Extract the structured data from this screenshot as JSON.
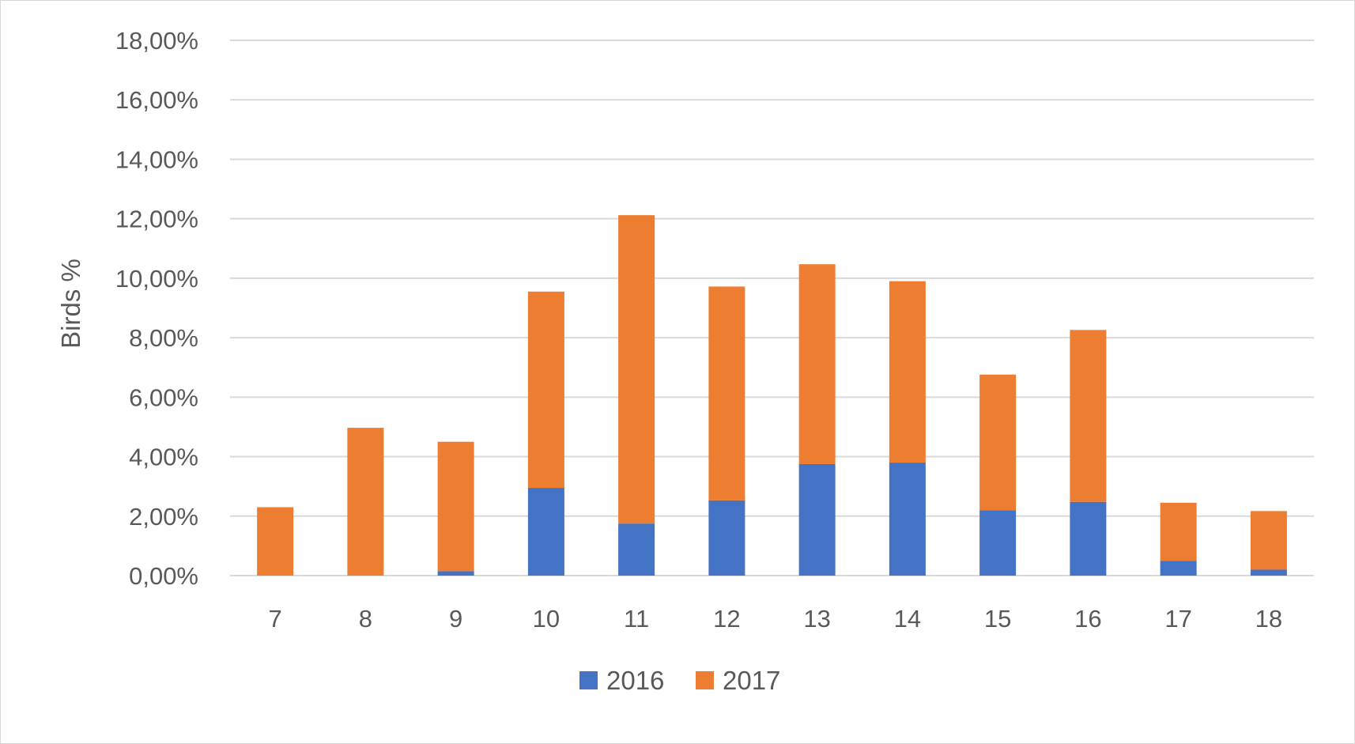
{
  "chart_data": {
    "type": "bar",
    "stacked": true,
    "categories": [
      "7",
      "8",
      "9",
      "10",
      "11",
      "12",
      "13",
      "14",
      "15",
      "16",
      "17",
      "18"
    ],
    "series": [
      {
        "name": "2016",
        "color": "#4472c4",
        "values": [
          0.0,
          0.0,
          0.15,
          2.95,
          1.75,
          2.53,
          3.75,
          3.8,
          2.2,
          2.48,
          0.5,
          0.2
        ]
      },
      {
        "name": "2017",
        "color": "#ed7d31",
        "values": [
          2.3,
          4.97,
          4.35,
          6.6,
          10.37,
          7.19,
          6.72,
          6.1,
          4.56,
          5.78,
          1.95,
          1.97
        ]
      }
    ],
    "title": "",
    "xlabel": "",
    "ylabel": "Birds %",
    "ylim": [
      0,
      18
    ],
    "yticks": [
      0,
      2,
      4,
      6,
      8,
      10,
      12,
      14,
      16,
      18
    ],
    "ytick_labels": [
      "0,00%",
      "2,00%",
      "4,00%",
      "6,00%",
      "8,00%",
      "10,00%",
      "12,00%",
      "14,00%",
      "16,00%",
      "18,00%"
    ],
    "grid": true,
    "legend_position": "bottom",
    "gridline_color": "#d9d9d9",
    "text_color": "#595959"
  }
}
